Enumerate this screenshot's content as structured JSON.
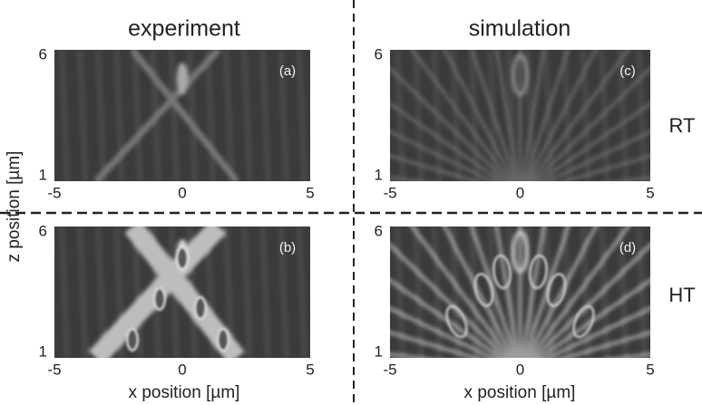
{
  "column_titles": [
    "experiment",
    "simulation"
  ],
  "row_labels": [
    "RT",
    "HT"
  ],
  "y_axis_label": "z position [µm]",
  "x_axis_label": "x position [µm]",
  "panels": [
    {
      "label": "(a)",
      "x_ticks": [
        "-5",
        "0",
        "5"
      ],
      "y_ticks": [
        "6",
        "1"
      ]
    },
    {
      "label": "(b)",
      "x_ticks": [
        "-5",
        "0",
        "5"
      ],
      "y_ticks": [
        "6",
        "1"
      ]
    },
    {
      "label": "(c)",
      "x_ticks": [
        "-5",
        "0",
        "5"
      ],
      "y_ticks": [
        "6",
        "1"
      ]
    },
    {
      "label": "(d)",
      "x_ticks": [
        "-5",
        "0",
        "5"
      ],
      "y_ticks": [
        "6",
        "1"
      ]
    }
  ]
}
